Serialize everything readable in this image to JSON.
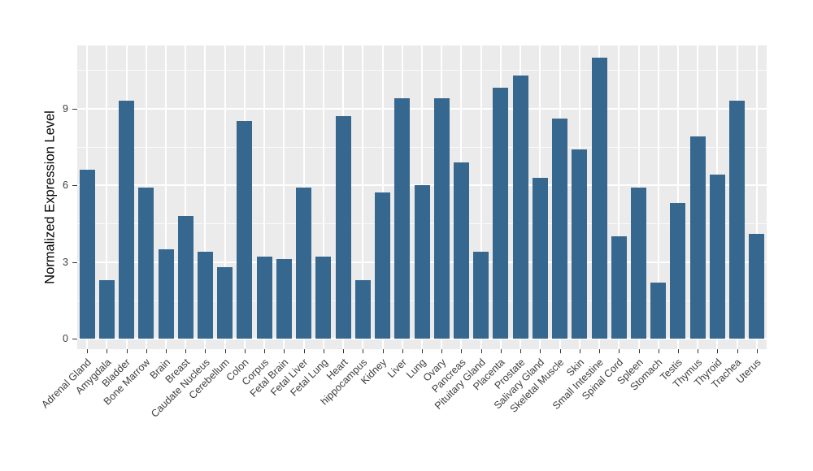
{
  "chart_data": {
    "type": "bar",
    "title": "",
    "xlabel": "",
    "ylabel": "Normalized Expression Level",
    "categories": [
      "Adrenal Gland",
      "Amygdala",
      "Bladder",
      "Bone Marrow",
      "Brain",
      "Breast",
      "Caudate Nucleus",
      "Cerebellum",
      "Colon",
      "Corpus",
      "Fetal Brain",
      "Fetal Liver",
      "Fetal Lung",
      "Heart",
      "hippocampus",
      "Kidney",
      "Liver",
      "Lung",
      "Ovary",
      "Pancreas",
      "Pituitary Gland",
      "Placenta",
      "Prostate",
      "Salivary Gland",
      "Skeletal Muscle",
      "Skin",
      "Small Intestine",
      "Spinal Cord",
      "Spleen",
      "Stomach",
      "Testis",
      "Thymus",
      "Thyroid",
      "Trachea",
      "Uterus"
    ],
    "values": [
      6.6,
      2.3,
      9.3,
      5.9,
      3.5,
      4.8,
      3.4,
      2.8,
      8.5,
      3.2,
      3.1,
      5.9,
      3.2,
      8.7,
      2.3,
      5.7,
      9.4,
      6.0,
      9.4,
      6.9,
      3.4,
      9.8,
      10.3,
      6.3,
      8.6,
      7.4,
      11.0,
      4.0,
      5.9,
      2.2,
      5.3,
      7.9,
      6.4,
      9.3,
      4.1
    ],
    "ylim": [
      0,
      11.5
    ],
    "yticks": [
      0,
      3,
      6,
      9
    ],
    "y_minor_ticks": [
      1.5,
      4.5,
      7.5,
      10.5
    ],
    "grid": "major and minor white gridlines, ggplot style",
    "legend": "none",
    "colors": {
      "bar": "#36678F",
      "panel_background": "#EBEBEB",
      "grid_major": "#FFFFFF",
      "grid_minor": "#FFFFFF",
      "axis_text": "#3d3d3d",
      "tick_mark": "#333333",
      "figure_background": "#FFFFFF"
    }
  }
}
